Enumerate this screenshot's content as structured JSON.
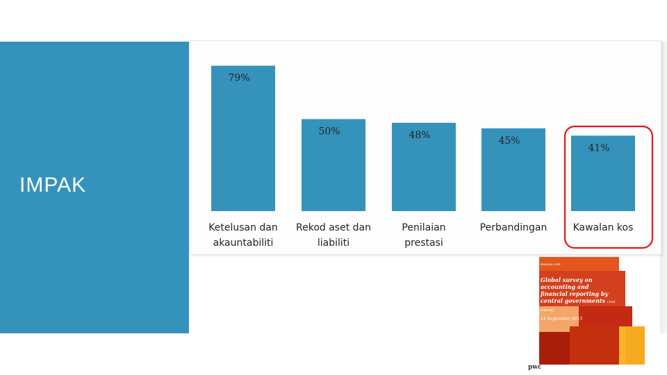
{
  "side": {
    "title": "IMPAK"
  },
  "colors": {
    "accent": "#3593bb",
    "highlight": "#e8141b"
  },
  "chart_data": {
    "type": "bar",
    "categories": [
      [
        "Ketelusan dan",
        "akauntabiliti"
      ],
      [
        "Rekod aset dan",
        "liabiliti"
      ],
      [
        "Penilaian",
        "prestasi"
      ],
      [
        "Perbandingan"
      ],
      [
        "Kawalan kos"
      ]
    ],
    "values": [
      79,
      50,
      48,
      45,
      41
    ],
    "value_labels": [
      "79%",
      "50%",
      "48%",
      "45%",
      "41%"
    ],
    "ylim": [
      0,
      100
    ],
    "highlighted_category": "Kawalan kos",
    "grid": false,
    "legend": "none"
  },
  "report": {
    "top_line": "www.pwc.com",
    "title": "Global survey on accounting and financial reporting by central governments",
    "edition": "(2nd edition)",
    "date": "14 September 2015",
    "logo": "pwc"
  }
}
